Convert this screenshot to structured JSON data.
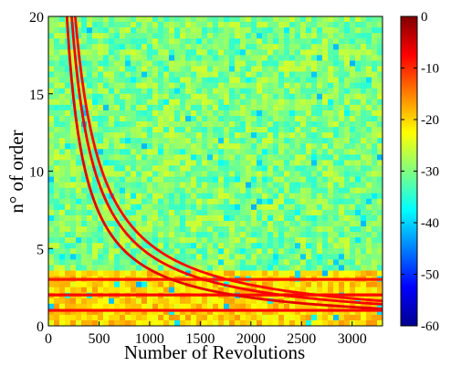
{
  "chart_data": {
    "type": "heatmap",
    "title": "",
    "xlabel": "Number of Revolutions",
    "ylabel": "n° of order",
    "xlim": [
      0,
      3300
    ],
    "ylim": [
      0,
      20
    ],
    "x_ticks": [
      "0",
      "500",
      "1000",
      "1500",
      "2000",
      "2500",
      "3000"
    ],
    "y_ticks": [
      "0",
      "5",
      "10",
      "15",
      "20"
    ],
    "colorbar": {
      "range": [
        -60,
        0
      ],
      "ticks": [
        "0",
        "-10",
        "-20",
        "-30",
        "-40",
        "-50",
        "-60"
      ],
      "colormap": "jet"
    },
    "background_level": -30,
    "constant_order_lines": [
      {
        "order": 1.0,
        "level": -8
      },
      {
        "order": 2.0,
        "level": -8
      },
      {
        "order": 3.0,
        "level": -9
      }
    ],
    "hyperbolic_curves": [
      {
        "constant": 3650,
        "level": -6
      },
      {
        "constant": 4600,
        "level": -7
      },
      {
        "constant": 5300,
        "level": -8
      }
    ],
    "low_order_band": {
      "max_order": 3.5,
      "level": -20
    }
  }
}
